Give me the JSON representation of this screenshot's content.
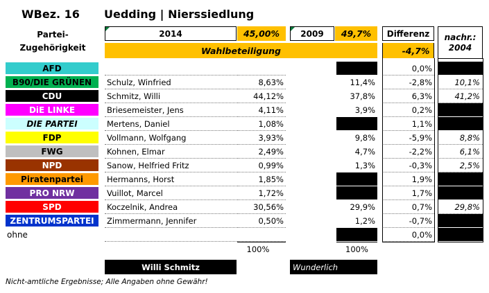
{
  "header": {
    "wbez": "WBez. 16",
    "location": "Uedding | Nierssiedlung"
  },
  "partei_label": "Partei-\nZugehörigkeit",
  "year_2014": "2014",
  "turnout_2014": "45,00%",
  "year_2009": "2009",
  "turnout_2009": "49,7%",
  "differenz_label": "Differenz",
  "nachr_label": "nachr.: 2004",
  "wahlbeteiligung_label": "Wahlbeteiligung",
  "turnout_diff": "-4,7%",
  "rows": [
    {
      "party": "AFD",
      "bg": "#33CCCC",
      "fg": "#000000",
      "italic": false,
      "candidate": "",
      "pct2014": "",
      "pct2009": "",
      "b09": true,
      "diff": "0,0%",
      "n2004": "",
      "b04": true
    },
    {
      "party": "B90/DIE GRÜNEN",
      "bg": "#00B050",
      "fg": "#000000",
      "italic": false,
      "candidate": "Schulz, Winfried",
      "pct2014": "8,63%",
      "pct2009": "11,4%",
      "b09": false,
      "diff": "-2,8%",
      "n2004": "10,1%",
      "b04": false
    },
    {
      "party": "CDU",
      "bg": "#000000",
      "fg": "#FFFFFF",
      "italic": false,
      "candidate": "Schmitz, Willi",
      "pct2014": "44,12%",
      "pct2009": "37,8%",
      "b09": false,
      "diff": "6,3%",
      "n2004": "41,2%",
      "b04": false
    },
    {
      "party": "DiE LINKE",
      "bg": "#FF00FF",
      "fg": "#FFFFFF",
      "italic": false,
      "candidate": "Briesemeister, Jens",
      "pct2014": "4,11%",
      "pct2009": "3,9%",
      "b09": false,
      "diff": "0,2%",
      "n2004": "",
      "b04": true
    },
    {
      "party": "DIE PARTEI",
      "bg": "#CCFFFF",
      "fg": "#000000",
      "italic": true,
      "candidate": "Mertens, Daniel",
      "pct2014": "1,08%",
      "pct2009": "",
      "b09": true,
      "diff": "1,1%",
      "n2004": "",
      "b04": true
    },
    {
      "party": "FDP",
      "bg": "#FFFF00",
      "fg": "#000000",
      "italic": false,
      "candidate": "Vollmann, Wolfgang",
      "pct2014": "3,93%",
      "pct2009": "9,8%",
      "b09": false,
      "diff": "-5,9%",
      "n2004": "8,8%",
      "b04": false
    },
    {
      "party": "FWG",
      "bg": "#BFBFBF",
      "fg": "#000000",
      "italic": false,
      "candidate": "Kohnen, Elmar",
      "pct2014": "2,49%",
      "pct2009": "4,7%",
      "b09": false,
      "diff": "-2,2%",
      "n2004": "6,1%",
      "b04": false
    },
    {
      "party": "NPD",
      "bg": "#993300",
      "fg": "#FFFFFF",
      "italic": false,
      "candidate": "Sanow, Helfried Fritz",
      "pct2014": "0,99%",
      "pct2009": "1,3%",
      "b09": false,
      "diff": "-0,3%",
      "n2004": "2,5%",
      "b04": false
    },
    {
      "party": "Piratenpartei",
      "bg": "#FF9900",
      "fg": "#000000",
      "italic": false,
      "candidate": "Hermanns, Horst",
      "pct2014": "1,85%",
      "pct2009": "",
      "b09": true,
      "diff": "1,9%",
      "n2004": "",
      "b04": true
    },
    {
      "party": "PRO NRW",
      "bg": "#7030A0",
      "fg": "#FFFFFF",
      "italic": false,
      "candidate": "Vuillot, Marcel",
      "pct2014": "1,72%",
      "pct2009": "",
      "b09": true,
      "diff": "1,7%",
      "n2004": "",
      "b04": true
    },
    {
      "party": "SPD",
      "bg": "#FF0000",
      "fg": "#FFFFFF",
      "italic": false,
      "candidate": "Koczelnik, Andrea",
      "pct2014": "30,56%",
      "pct2009": "29,9%",
      "b09": false,
      "diff": "0,7%",
      "n2004": "29,8%",
      "b04": false
    },
    {
      "party": "ZENTRUMSPARTEI",
      "bg": "#0033CC",
      "fg": "#FFFFFF",
      "italic": false,
      "candidate": "Zimmermann, Jennifer",
      "pct2014": "0,50%",
      "pct2009": "1,2%",
      "b09": false,
      "diff": "-0,7%",
      "n2004": "",
      "b04": true
    },
    {
      "party": "ohne",
      "bg": "",
      "fg": "#000000",
      "italic": false,
      "candidate": "",
      "pct2014": "",
      "pct2009": "",
      "b09": true,
      "diff": "0,0%",
      "n2004": "",
      "b04": true
    }
  ],
  "total_2014": "100%",
  "total_2009": "100%",
  "winner_2014": "Willi Schmitz",
  "winner_2009": "Wunderlich",
  "footnote": "Nicht-amtliche Ergebnisse; Alle Angaben ohne Gewähr!"
}
